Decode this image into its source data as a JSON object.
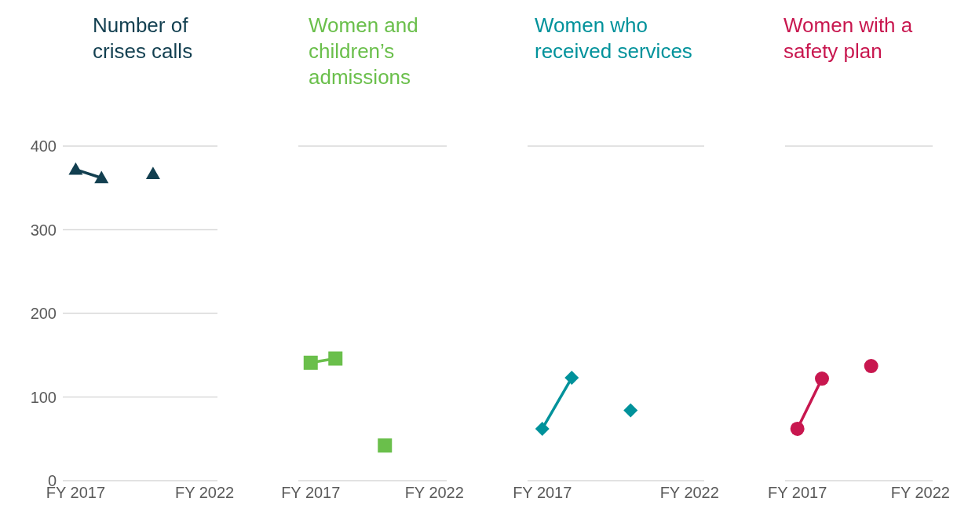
{
  "chart_data": [
    {
      "type": "line",
      "title": "Number of crises calls",
      "categories": [
        "FY 2017",
        null,
        null,
        null,
        null,
        "FY 2022"
      ],
      "series": [
        {
          "color": "#123f50",
          "values": [
            372,
            362,
            null,
            367,
            null,
            null
          ]
        }
      ],
      "ylim": [
        0,
        400
      ],
      "yticks": [
        0,
        100,
        200,
        300,
        400
      ],
      "grid": "y",
      "marker": "triangle",
      "line_style": "solid"
    },
    {
      "type": "line",
      "title": "Women and children’s admissions",
      "categories": [
        "FY 2017",
        null,
        null,
        null,
        null,
        "FY 2022"
      ],
      "series": [
        {
          "color": "#6abf4b",
          "values": [
            141,
            146,
            null,
            42,
            null,
            null
          ]
        }
      ],
      "ylim": [
        0,
        400
      ],
      "yticks": [
        0,
        100,
        200,
        300,
        400
      ],
      "grid": "y",
      "tick_labels": "x",
      "marker": "square",
      "line_style": "solid"
    },
    {
      "type": "line",
      "title": "Women who received services",
      "categories": [
        "FY 2017",
        null,
        null,
        null,
        null,
        "FY 2022"
      ],
      "series": [
        {
          "color": "#00929b",
          "values": [
            62,
            123,
            null,
            84,
            null,
            null
          ]
        }
      ],
      "ylim": [
        0,
        400
      ],
      "yticks": [
        0,
        100,
        200,
        300,
        400
      ],
      "grid": "y",
      "tick_labels": "x",
      "marker": "diamond",
      "line_style": "solid"
    },
    {
      "type": "line",
      "title": "Women with a safety plan",
      "categories": [
        "FY 2017",
        null,
        null,
        null,
        null,
        "FY 2022"
      ],
      "series": [
        {
          "color": "#c8174f",
          "values": [
            62,
            122,
            null,
            137,
            null,
            null
          ]
        }
      ],
      "ylim": [
        0,
        400
      ],
      "yticks": [
        0,
        100,
        200,
        300,
        400
      ],
      "grid": "y",
      "tick_labels": "x",
      "marker": "circle",
      "line_style": "solid"
    }
  ]
}
